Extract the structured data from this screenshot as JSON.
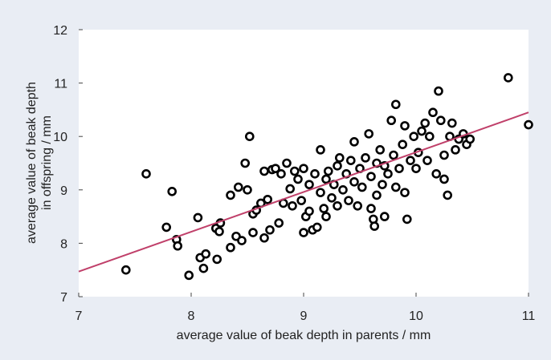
{
  "chart_data": {
    "type": "scatter",
    "xlabel": "average value of beak depth in parents / mm",
    "ylabel_lines": [
      "average value of beak depth",
      "in offspring / mm"
    ],
    "xlim": [
      7,
      11
    ],
    "ylim": [
      7,
      12
    ],
    "xticks": [
      "7",
      "8",
      "9",
      "10",
      "11"
    ],
    "yticks": [
      "7",
      "8",
      "9",
      "10",
      "11",
      "12"
    ],
    "grid": false,
    "legend": "none",
    "colors": {
      "background": "#e9edf4",
      "plot_area": "#ffffff",
      "trend_line": "#c0406a",
      "marker_fill": "#ffffff",
      "marker_edge": "#000000"
    },
    "trend_line": {
      "x": [
        7,
        11
      ],
      "y": [
        7.47,
        10.45
      ]
    },
    "points": [
      [
        7.42,
        7.5
      ],
      [
        7.6,
        9.3
      ],
      [
        7.78,
        8.3
      ],
      [
        7.83,
        8.97
      ],
      [
        7.87,
        8.07
      ],
      [
        7.88,
        7.95
      ],
      [
        7.98,
        7.4
      ],
      [
        8.06,
        8.48
      ],
      [
        8.08,
        7.73
      ],
      [
        8.11,
        7.53
      ],
      [
        8.13,
        7.8
      ],
      [
        8.23,
        7.7
      ],
      [
        8.22,
        8.28
      ],
      [
        8.25,
        8.22
      ],
      [
        8.26,
        8.38
      ],
      [
        8.35,
        7.92
      ],
      [
        8.35,
        8.9
      ],
      [
        8.4,
        8.13
      ],
      [
        8.42,
        9.05
      ],
      [
        8.45,
        8.05
      ],
      [
        8.48,
        9.5
      ],
      [
        8.5,
        9.0
      ],
      [
        8.52,
        10.0
      ],
      [
        8.55,
        8.55
      ],
      [
        8.55,
        8.2
      ],
      [
        8.58,
        8.62
      ],
      [
        8.62,
        8.75
      ],
      [
        8.65,
        8.1
      ],
      [
        8.65,
        9.35
      ],
      [
        8.68,
        8.82
      ],
      [
        8.7,
        8.25
      ],
      [
        8.72,
        9.38
      ],
      [
        8.75,
        9.4
      ],
      [
        8.78,
        8.38
      ],
      [
        8.8,
        9.3
      ],
      [
        8.82,
        8.75
      ],
      [
        8.85,
        9.5
      ],
      [
        8.88,
        9.02
      ],
      [
        8.9,
        8.7
      ],
      [
        8.92,
        9.35
      ],
      [
        8.95,
        9.2
      ],
      [
        8.98,
        8.8
      ],
      [
        9.0,
        9.4
      ],
      [
        9.0,
        8.2
      ],
      [
        9.02,
        8.5
      ],
      [
        9.05,
        9.1
      ],
      [
        9.05,
        8.6
      ],
      [
        9.08,
        8.25
      ],
      [
        9.1,
        9.3
      ],
      [
        9.12,
        8.3
      ],
      [
        9.15,
        9.75
      ],
      [
        9.15,
        8.95
      ],
      [
        9.18,
        8.65
      ],
      [
        9.2,
        9.2
      ],
      [
        9.2,
        8.5
      ],
      [
        9.22,
        9.35
      ],
      [
        9.25,
        8.85
      ],
      [
        9.27,
        9.1
      ],
      [
        9.3,
        9.45
      ],
      [
        9.3,
        8.7
      ],
      [
        9.32,
        9.6
      ],
      [
        9.35,
        9.0
      ],
      [
        9.38,
        9.3
      ],
      [
        9.4,
        8.8
      ],
      [
        9.42,
        9.55
      ],
      [
        9.45,
        9.9
      ],
      [
        9.45,
        9.15
      ],
      [
        9.48,
        8.7
      ],
      [
        9.5,
        9.4
      ],
      [
        9.52,
        9.05
      ],
      [
        9.55,
        9.6
      ],
      [
        9.58,
        10.05
      ],
      [
        9.6,
        9.25
      ],
      [
        9.6,
        8.65
      ],
      [
        9.62,
        8.45
      ],
      [
        9.63,
        8.32
      ],
      [
        9.65,
        9.5
      ],
      [
        9.65,
        8.9
      ],
      [
        9.68,
        9.75
      ],
      [
        9.7,
        9.1
      ],
      [
        9.72,
        9.45
      ],
      [
        9.72,
        8.5
      ],
      [
        9.75,
        9.3
      ],
      [
        9.78,
        10.3
      ],
      [
        9.8,
        9.65
      ],
      [
        9.82,
        10.6
      ],
      [
        9.82,
        9.05
      ],
      [
        9.85,
        9.4
      ],
      [
        9.88,
        9.85
      ],
      [
        9.9,
        10.2
      ],
      [
        9.9,
        8.95
      ],
      [
        9.92,
        8.45
      ],
      [
        9.95,
        9.55
      ],
      [
        9.98,
        10.0
      ],
      [
        10.0,
        9.4
      ],
      [
        10.02,
        9.7
      ],
      [
        10.05,
        10.1
      ],
      [
        10.08,
        10.25
      ],
      [
        10.1,
        9.55
      ],
      [
        10.12,
        10.0
      ],
      [
        10.15,
        10.45
      ],
      [
        10.18,
        9.3
      ],
      [
        10.2,
        10.85
      ],
      [
        10.22,
        10.3
      ],
      [
        10.25,
        9.65
      ],
      [
        10.25,
        9.2
      ],
      [
        10.28,
        8.9
      ],
      [
        10.3,
        10.0
      ],
      [
        10.32,
        10.25
      ],
      [
        10.35,
        9.75
      ],
      [
        10.38,
        9.95
      ],
      [
        10.42,
        10.05
      ],
      [
        10.45,
        9.85
      ],
      [
        10.48,
        9.95
      ],
      [
        10.82,
        11.1
      ],
      [
        11.0,
        10.22
      ]
    ]
  }
}
